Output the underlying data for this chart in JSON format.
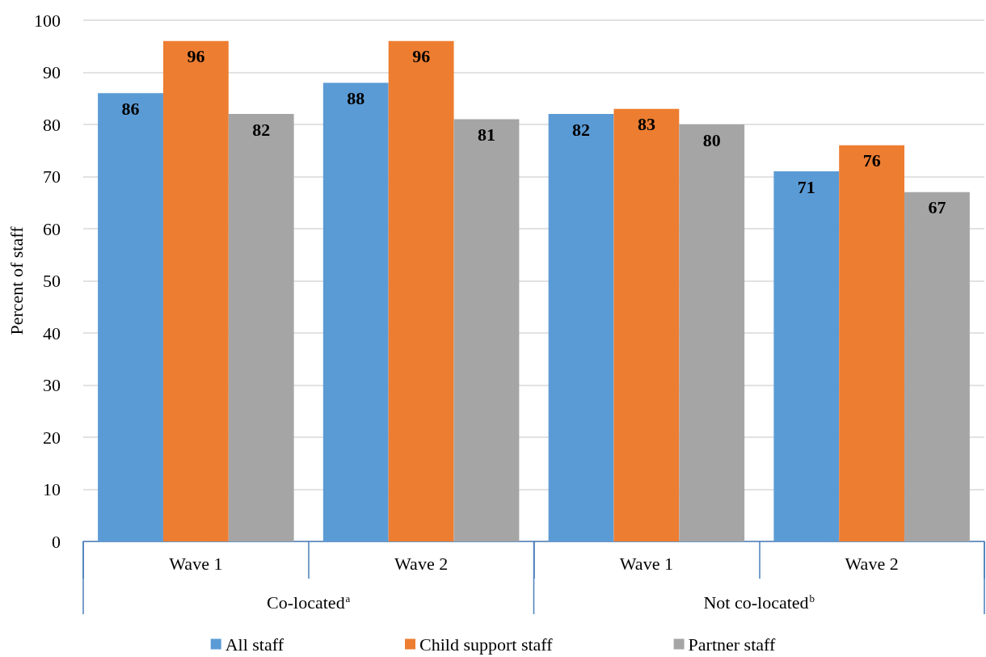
{
  "chart_data": {
    "type": "bar",
    "ylabel": "Percent of staff",
    "categories": [
      "Wave 1",
      "Wave 2",
      "Wave 1",
      "Wave 2"
    ],
    "series": [
      {
        "name": "All staff",
        "color": "#5b9bd5",
        "values": [
          86,
          88,
          82,
          71
        ]
      },
      {
        "name": "Child support staff",
        "color": "#ed7d31",
        "values": [
          96,
          96,
          83,
          76
        ]
      },
      {
        "name": "Partner staff",
        "color": "#a5a5a5",
        "values": [
          82,
          81,
          80,
          67
        ]
      }
    ],
    "annotations": [
      "Co-located$^{a}$",
      "Not co-located$^{b}$"
    ],
    "ylim": [
      0,
      100
    ],
    "yticks": [
      0,
      10,
      20,
      30,
      40,
      50,
      60,
      70,
      80,
      90,
      100
    ],
    "grid": "y",
    "legend": "bottom",
    "data_labels": true
  }
}
